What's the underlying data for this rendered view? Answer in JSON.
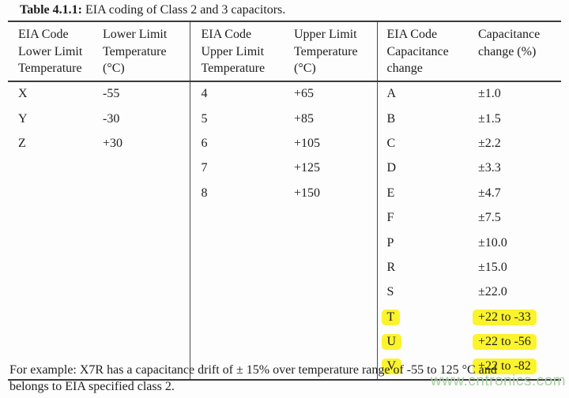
{
  "caption": {
    "label": "Table 4.1.1:",
    "text": " EIA coding of Class 2 and 3 capacitors."
  },
  "table": {
    "headers": [
      "EIA Code\nLower Limit\nTemperature",
      "Lower Limit\nTemperature\n(°C)",
      "EIA Code\nUpper Limit\nTemperature",
      "Upper Limit\nTemperature\n(°C)",
      "EIA Code\nCapacitance\nchange",
      "Capacitance\nchange (%)"
    ],
    "rows": [
      {
        "cells": [
          "X",
          "-55",
          "4",
          "+65",
          "A",
          "±1.0"
        ],
        "highlighted": false
      },
      {
        "cells": [
          "Y",
          "-30",
          "5",
          "+85",
          "B",
          "±1.5"
        ],
        "highlighted": false
      },
      {
        "cells": [
          "Z",
          "+30",
          "6",
          "+105",
          "C",
          "±2.2"
        ],
        "highlighted": false
      },
      {
        "cells": [
          "",
          "",
          "7",
          "+125",
          "D",
          "±3.3"
        ],
        "highlighted": false
      },
      {
        "cells": [
          "",
          "",
          "8",
          "+150",
          "E",
          "±4.7"
        ],
        "highlighted": false
      },
      {
        "cells": [
          "",
          "",
          "",
          "",
          "F",
          "±7.5"
        ],
        "highlighted": false
      },
      {
        "cells": [
          "",
          "",
          "",
          "",
          "P",
          "±10.0"
        ],
        "highlighted": false
      },
      {
        "cells": [
          "",
          "",
          "",
          "",
          "R",
          "±15.0"
        ],
        "highlighted": false
      },
      {
        "cells": [
          "",
          "",
          "",
          "",
          "S",
          "±22.0"
        ],
        "highlighted": false
      },
      {
        "cells": [
          "",
          "",
          "",
          "",
          "T",
          "+22 to -33"
        ],
        "highlighted": true
      },
      {
        "cells": [
          "",
          "",
          "",
          "",
          "U",
          "+22 to -56"
        ],
        "highlighted": true
      },
      {
        "cells": [
          "",
          "",
          "",
          "",
          "V",
          "+22 to -82"
        ],
        "highlighted": true
      }
    ]
  },
  "footnote": "For example: X7R has a capacitance drift of ± 15% over temperature range of -55 to 125 °C and\nbelongs to EIA specified class 2.",
  "watermark": "www.cntronics.com",
  "colors": {
    "highlight": "#fbf32c",
    "watermark": "#a9cfa4"
  }
}
